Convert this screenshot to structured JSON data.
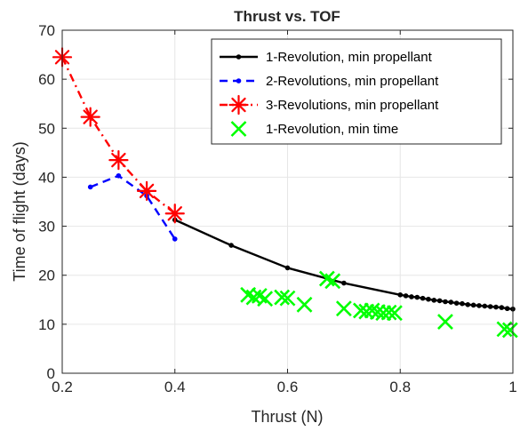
{
  "chart_data": {
    "type": "line",
    "title": "Thrust vs. TOF",
    "xlabel": "Thrust (N)",
    "ylabel": "Time of flight (days)",
    "xlim": [
      0.2,
      1.0
    ],
    "ylim": [
      0,
      70
    ],
    "xticks": [
      "0.2",
      "0.4",
      "0.6",
      "0.8",
      "1"
    ],
    "yticks": [
      "0",
      "10",
      "20",
      "30",
      "40",
      "50",
      "60",
      "70"
    ],
    "grid": true,
    "legend_position": "top-right",
    "series": [
      {
        "name": "1-Revolution, min propellant",
        "color": "#000000",
        "line_style": "solid",
        "marker": "dot",
        "x": [
          0.4,
          0.5,
          0.6,
          0.7,
          0.8,
          0.81,
          0.82,
          0.83,
          0.84,
          0.85,
          0.86,
          0.87,
          0.88,
          0.89,
          0.9,
          0.91,
          0.92,
          0.93,
          0.94,
          0.95,
          0.96,
          0.97,
          0.98,
          0.99,
          1.0
        ],
        "y": [
          31.3,
          26.1,
          21.5,
          18.4,
          16.0,
          15.8,
          15.6,
          15.5,
          15.3,
          15.1,
          14.9,
          14.8,
          14.6,
          14.5,
          14.3,
          14.2,
          14.0,
          13.9,
          13.8,
          13.7,
          13.6,
          13.5,
          13.4,
          13.2,
          13.1
        ]
      },
      {
        "name": "2-Revolutions, min propellant",
        "color": "#0000ff",
        "line_style": "dashed",
        "marker": "dot",
        "x": [
          0.25,
          0.3,
          0.35,
          0.4
        ],
        "y": [
          38.0,
          40.3,
          36.2,
          27.4
        ]
      },
      {
        "name": "3-Revolutions, min propellant",
        "color": "#ff0000",
        "line_style": "dashdot",
        "marker": "asterisk",
        "x": [
          0.2,
          0.25,
          0.3,
          0.35,
          0.4
        ],
        "y": [
          64.5,
          52.3,
          43.5,
          37.2,
          32.6
        ]
      },
      {
        "name": "1-Revolution, min time",
        "color": "#00ff00",
        "line_style": "none",
        "marker": "x",
        "x": [
          0.53,
          0.54,
          0.55,
          0.56,
          0.59,
          0.6,
          0.63,
          0.67,
          0.68,
          0.7,
          0.73,
          0.74,
          0.75,
          0.76,
          0.77,
          0.78,
          0.79,
          0.88,
          0.985,
          0.995
        ],
        "y": [
          16.0,
          15.5,
          15.8,
          15.2,
          15.5,
          15.3,
          14.0,
          19.3,
          18.8,
          13.2,
          12.8,
          12.6,
          12.8,
          12.5,
          12.3,
          12.4,
          12.3,
          10.5,
          9.0,
          8.8
        ]
      }
    ]
  }
}
